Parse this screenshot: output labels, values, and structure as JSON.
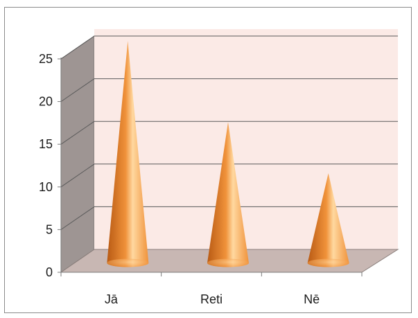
{
  "chart_data": {
    "type": "bar",
    "style": "3d-cone",
    "title": "",
    "xlabel": "",
    "ylabel": "",
    "categories": [
      "Jā",
      "Reti",
      "Nē"
    ],
    "values": [
      26,
      16.5,
      10.5
    ],
    "ylim": [
      0,
      25
    ],
    "yticks": [
      "0",
      "5",
      "10",
      "15",
      "20",
      "25"
    ],
    "grid": true,
    "legend": "none",
    "colors": {
      "cone_base": "#f0923a",
      "cone_highlight": "#ffd8a0",
      "cone_shadow": "#b85a14",
      "back_wall": "#fbeae6",
      "side_wall": "#9e9593",
      "floor": "#c8b7b3",
      "gridline": "#5a5a5a"
    }
  }
}
